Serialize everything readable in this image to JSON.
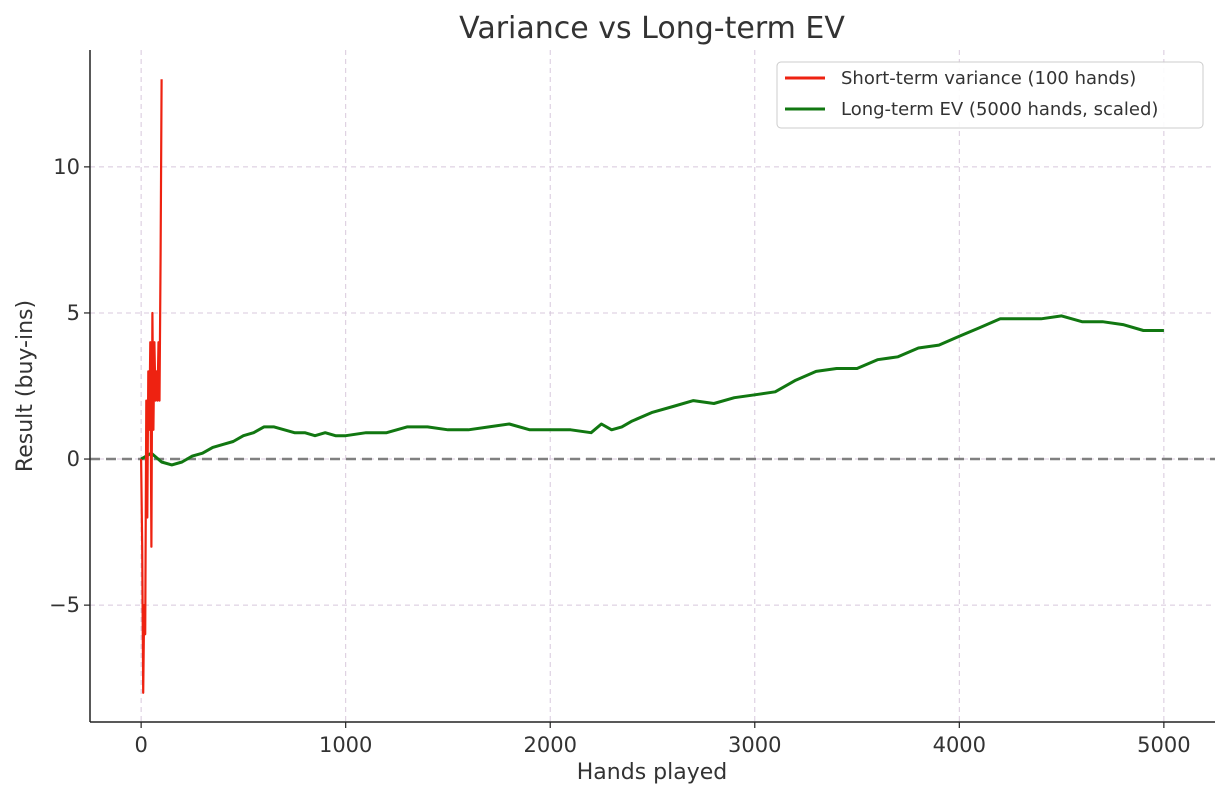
{
  "chart_data": {
    "type": "line",
    "title": "Variance vs Long-term EV",
    "xlabel": "Hands played",
    "ylabel": "Result (buy-ins)",
    "xlim": [
      -250,
      5250
    ],
    "ylim": [
      -9,
      14
    ],
    "x_ticks": [
      0,
      1000,
      2000,
      3000,
      4000,
      5000
    ],
    "y_ticks": [
      -5,
      0,
      5,
      10
    ],
    "x_tick_labels": [
      "0",
      "1000",
      "2000",
      "3000",
      "4000",
      "5000"
    ],
    "y_tick_labels": [
      "−5",
      "0",
      "5",
      "10"
    ],
    "grid": true,
    "legend_position": "top-right",
    "reference_line": {
      "y": 0,
      "style": "dashed",
      "color": "#808080"
    },
    "series": [
      {
        "name": "Short-term variance (100 hands)",
        "color": "#ee2211",
        "x": [
          0,
          5,
          10,
          15,
          20,
          25,
          30,
          35,
          40,
          45,
          50,
          55,
          60,
          65,
          70,
          75,
          80,
          85,
          90,
          95,
          100
        ],
        "y": [
          0,
          -3,
          -8,
          -5,
          -6,
          2,
          -2,
          3,
          1,
          4,
          -3,
          5,
          1,
          4,
          2,
          3,
          2,
          4,
          2,
          7,
          13
        ]
      },
      {
        "name": "Long-term EV (5000 hands, scaled)",
        "color": "#117711",
        "x": [
          0,
          50,
          100,
          150,
          200,
          250,
          300,
          350,
          400,
          450,
          500,
          550,
          600,
          650,
          700,
          750,
          800,
          850,
          900,
          950,
          1000,
          1100,
          1200,
          1300,
          1400,
          1500,
          1600,
          1700,
          1800,
          1900,
          2000,
          2100,
          2200,
          2250,
          2300,
          2350,
          2400,
          2500,
          2600,
          2700,
          2800,
          2900,
          3000,
          3100,
          3200,
          3300,
          3400,
          3500,
          3600,
          3700,
          3800,
          3900,
          4000,
          4100,
          4200,
          4300,
          4400,
          4500,
          4600,
          4700,
          4800,
          4900,
          5000
        ],
        "y": [
          0,
          0.2,
          -0.1,
          -0.2,
          -0.1,
          0.1,
          0.2,
          0.4,
          0.5,
          0.6,
          0.8,
          0.9,
          1.1,
          1.1,
          1.0,
          0.9,
          0.9,
          0.8,
          0.9,
          0.8,
          0.8,
          0.9,
          0.9,
          1.1,
          1.1,
          1.0,
          1.0,
          1.1,
          1.2,
          1.0,
          1.0,
          1.0,
          0.9,
          1.2,
          1.0,
          1.1,
          1.3,
          1.6,
          1.8,
          2.0,
          1.9,
          2.1,
          2.2,
          2.3,
          2.7,
          3.0,
          3.1,
          3.1,
          3.4,
          3.5,
          3.8,
          3.9,
          4.2,
          4.5,
          4.8,
          4.8,
          4.8,
          4.9,
          4.7,
          4.7,
          4.6,
          4.4,
          4.4
        ]
      }
    ]
  }
}
